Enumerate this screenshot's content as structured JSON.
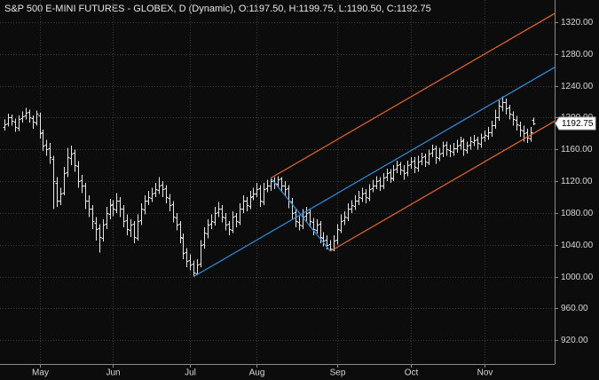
{
  "chart_data": {
    "type": "ohlc",
    "title": "S&P 500 E-MINI FUTURES - GLOBEX, D (Dynamic), O:1197.50, H:1199.75, L:1190.50, C:1192.75",
    "categories": [
      null,
      null,
      null,
      null,
      null,
      null,
      null,
      null,
      null,
      null,
      "May",
      null,
      null,
      null,
      null,
      null,
      null,
      null,
      null,
      null,
      null,
      null,
      null,
      null,
      null,
      null,
      null,
      null,
      null,
      null,
      null,
      "Jun",
      null,
      null,
      null,
      null,
      null,
      null,
      null,
      null,
      null,
      null,
      null,
      null,
      null,
      null,
      null,
      null,
      null,
      null,
      null,
      null,
      null,
      "Jul",
      null,
      null,
      null,
      null,
      null,
      null,
      null,
      null,
      null,
      null,
      null,
      null,
      null,
      null,
      null,
      null,
      null,
      null,
      "Aug",
      null,
      null,
      null,
      null,
      null,
      null,
      null,
      null,
      null,
      null,
      null,
      null,
      null,
      null,
      null,
      null,
      null,
      null,
      null,
      null,
      null,
      null,
      "Sep",
      null,
      null,
      null,
      null,
      null,
      null,
      null,
      null,
      null,
      null,
      null,
      null,
      null,
      null,
      null,
      null,
      null,
      null,
      null,
      null,
      "Oct",
      null,
      null,
      null,
      null,
      null,
      null,
      null,
      null,
      null,
      null,
      null,
      null,
      null,
      null,
      null,
      null,
      null,
      null,
      null,
      null,
      "Nov",
      null,
      null,
      null,
      null,
      null,
      null,
      null,
      null,
      null,
      null,
      null,
      null,
      null
    ],
    "values": [
      [
        1188,
        1198,
        1184,
        1192
      ],
      [
        1193,
        1205,
        1189,
        1200
      ],
      [
        1201,
        1204,
        1190,
        1196
      ],
      [
        1195,
        1199,
        1182,
        1188
      ],
      [
        1187,
        1203,
        1183,
        1198
      ],
      [
        1199,
        1208,
        1194,
        1202
      ],
      [
        1203,
        1212,
        1198,
        1206
      ],
      [
        1207,
        1210,
        1194,
        1200
      ],
      [
        1199,
        1203,
        1186,
        1195
      ],
      [
        1194,
        1209,
        1190,
        1205
      ],
      [
        1203,
        1206,
        1174,
        1180
      ],
      [
        1181,
        1185,
        1158,
        1165
      ],
      [
        1166,
        1172,
        1152,
        1160
      ],
      [
        1162,
        1168,
        1142,
        1150
      ],
      [
        1148,
        1152,
        1085,
        1120
      ],
      [
        1118,
        1125,
        1088,
        1095
      ],
      [
        1096,
        1112,
        1090,
        1105
      ],
      [
        1106,
        1138,
        1102,
        1130
      ],
      [
        1131,
        1162,
        1125,
        1150
      ],
      [
        1149,
        1165,
        1140,
        1155
      ],
      [
        1156,
        1160,
        1132,
        1140
      ],
      [
        1139,
        1145,
        1112,
        1120
      ],
      [
        1121,
        1128,
        1105,
        1115
      ],
      [
        1114,
        1118,
        1085,
        1095
      ],
      [
        1096,
        1102,
        1075,
        1085
      ],
      [
        1086,
        1090,
        1060,
        1070
      ],
      [
        1068,
        1075,
        1045,
        1060
      ],
      [
        1061,
        1066,
        1030,
        1050
      ],
      [
        1049,
        1072,
        1044,
        1065
      ],
      [
        1066,
        1088,
        1060,
        1080
      ],
      [
        1079,
        1098,
        1072,
        1090
      ],
      [
        1091,
        1096,
        1076,
        1085
      ],
      [
        1084,
        1105,
        1080,
        1095
      ],
      [
        1096,
        1100,
        1075,
        1085
      ],
      [
        1086,
        1090,
        1062,
        1070
      ],
      [
        1071,
        1078,
        1052,
        1060
      ],
      [
        1059,
        1072,
        1050,
        1065
      ],
      [
        1066,
        1070,
        1042,
        1050
      ],
      [
        1049,
        1078,
        1045,
        1070
      ],
      [
        1071,
        1092,
        1065,
        1085
      ],
      [
        1084,
        1102,
        1078,
        1095
      ],
      [
        1096,
        1108,
        1090,
        1100
      ],
      [
        1099,
        1112,
        1094,
        1105
      ],
      [
        1106,
        1118,
        1100,
        1110
      ],
      [
        1109,
        1125,
        1104,
        1115
      ],
      [
        1116,
        1120,
        1100,
        1110
      ],
      [
        1111,
        1115,
        1092,
        1100
      ],
      [
        1099,
        1104,
        1082,
        1090
      ],
      [
        1091,
        1095,
        1068,
        1075
      ],
      [
        1074,
        1080,
        1058,
        1065
      ],
      [
        1066,
        1070,
        1042,
        1050
      ],
      [
        1049,
        1054,
        1022,
        1030
      ],
      [
        1031,
        1036,
        1012,
        1020
      ],
      [
        1021,
        1028,
        1008,
        1015
      ],
      [
        1016,
        1020,
        1000,
        1005
      ],
      [
        1004,
        1022,
        1002,
        1015
      ],
      [
        1016,
        1046,
        1012,
        1040
      ],
      [
        1041,
        1062,
        1035,
        1055
      ],
      [
        1054,
        1072,
        1048,
        1065
      ],
      [
        1066,
        1078,
        1060,
        1070
      ],
      [
        1069,
        1088,
        1064,
        1080
      ],
      [
        1081,
        1094,
        1075,
        1085
      ],
      [
        1086,
        1090,
        1068,
        1075
      ],
      [
        1074,
        1080,
        1058,
        1065
      ],
      [
        1066,
        1070,
        1052,
        1060
      ],
      [
        1059,
        1082,
        1055,
        1075
      ],
      [
        1076,
        1080,
        1062,
        1070
      ],
      [
        1069,
        1092,
        1065,
        1085
      ],
      [
        1086,
        1102,
        1080,
        1095
      ],
      [
        1096,
        1100,
        1082,
        1090
      ],
      [
        1089,
        1108,
        1085,
        1100
      ],
      [
        1101,
        1112,
        1096,
        1105
      ],
      [
        1104,
        1118,
        1100,
        1110
      ],
      [
        1111,
        1115,
        1088,
        1095
      ],
      [
        1094,
        1118,
        1090,
        1110
      ],
      [
        1111,
        1122,
        1106,
        1115
      ],
      [
        1114,
        1124,
        1108,
        1120
      ],
      [
        1121,
        1125,
        1110,
        1118
      ],
      [
        1117,
        1126,
        1112,
        1122
      ],
      [
        1123,
        1125,
        1106,
        1115
      ],
      [
        1114,
        1120,
        1102,
        1110
      ],
      [
        1111,
        1115,
        1086,
        1095
      ],
      [
        1094,
        1099,
        1072,
        1080
      ],
      [
        1081,
        1086,
        1062,
        1070
      ],
      [
        1069,
        1076,
        1058,
        1065
      ],
      [
        1064,
        1085,
        1060,
        1075
      ],
      [
        1076,
        1088,
        1070,
        1080
      ],
      [
        1081,
        1085,
        1062,
        1070
      ],
      [
        1069,
        1074,
        1052,
        1060
      ],
      [
        1059,
        1072,
        1054,
        1065
      ],
      [
        1066,
        1070,
        1042,
        1050
      ],
      [
        1049,
        1056,
        1038,
        1045
      ],
      [
        1046,
        1052,
        1034,
        1040
      ],
      [
        1041,
        1046,
        1032,
        1035
      ],
      [
        1034,
        1052,
        1032,
        1045
      ],
      [
        1046,
        1066,
        1040,
        1060
      ],
      [
        1059,
        1078,
        1055,
        1070
      ],
      [
        1071,
        1082,
        1065,
        1075
      ],
      [
        1074,
        1092,
        1070,
        1085
      ],
      [
        1086,
        1096,
        1080,
        1090
      ],
      [
        1089,
        1102,
        1084,
        1095
      ],
      [
        1096,
        1108,
        1090,
        1100
      ],
      [
        1099,
        1112,
        1094,
        1105
      ],
      [
        1106,
        1110,
        1092,
        1100
      ],
      [
        1099,
        1116,
        1095,
        1110
      ],
      [
        1111,
        1122,
        1106,
        1115
      ],
      [
        1114,
        1126,
        1110,
        1120
      ],
      [
        1121,
        1125,
        1108,
        1115
      ],
      [
        1114,
        1130,
        1110,
        1125
      ],
      [
        1126,
        1136,
        1120,
        1130
      ],
      [
        1131,
        1135,
        1118,
        1125
      ],
      [
        1124,
        1140,
        1120,
        1135
      ],
      [
        1136,
        1146,
        1130,
        1140
      ],
      [
        1141,
        1144,
        1128,
        1135
      ],
      [
        1134,
        1140,
        1122,
        1130
      ],
      [
        1131,
        1146,
        1126,
        1140
      ],
      [
        1141,
        1150,
        1136,
        1145
      ],
      [
        1146,
        1150,
        1130,
        1138
      ],
      [
        1137,
        1152,
        1132,
        1145
      ],
      [
        1146,
        1156,
        1140,
        1150
      ],
      [
        1151,
        1155,
        1138,
        1145
      ],
      [
        1144,
        1160,
        1140,
        1155
      ],
      [
        1156,
        1166,
        1150,
        1160
      ],
      [
        1161,
        1165,
        1142,
        1150
      ],
      [
        1149,
        1162,
        1145,
        1155
      ],
      [
        1156,
        1170,
        1150,
        1165
      ],
      [
        1166,
        1170,
        1152,
        1160
      ],
      [
        1159,
        1166,
        1150,
        1158
      ],
      [
        1157,
        1168,
        1152,
        1162
      ],
      [
        1161,
        1172,
        1156,
        1165
      ],
      [
        1166,
        1176,
        1160,
        1170
      ],
      [
        1171,
        1174,
        1152,
        1160
      ],
      [
        1159,
        1170,
        1155,
        1165
      ],
      [
        1166,
        1176,
        1160,
        1170
      ],
      [
        1169,
        1178,
        1164,
        1172
      ],
      [
        1173,
        1176,
        1160,
        1168
      ],
      [
        1167,
        1180,
        1162,
        1175
      ],
      [
        1176,
        1184,
        1170,
        1178
      ],
      [
        1177,
        1188,
        1172,
        1182
      ],
      [
        1181,
        1196,
        1176,
        1190
      ],
      [
        1191,
        1210,
        1186,
        1200
      ],
      [
        1201,
        1222,
        1196,
        1215
      ],
      [
        1214,
        1227,
        1208,
        1220
      ],
      [
        1219,
        1224,
        1204,
        1212
      ],
      [
        1213,
        1216,
        1198,
        1205
      ],
      [
        1204,
        1208,
        1190,
        1198
      ],
      [
        1197,
        1202,
        1184,
        1192
      ],
      [
        1191,
        1195,
        1176,
        1185
      ],
      [
        1184,
        1190,
        1170,
        1180
      ],
      [
        1181,
        1186,
        1168,
        1175
      ],
      [
        1174,
        1188,
        1170,
        1182
      ],
      [
        1197.5,
        1199.75,
        1190.5,
        1192.75
      ]
    ],
    "color": "#e8e8e8",
    "ylim": [
      890,
      1348
    ],
    "yticks": [
      {
        "value": 920,
        "label": "920.00"
      },
      {
        "value": 960,
        "label": "960.00"
      },
      {
        "value": 1000,
        "label": "1000.00"
      },
      {
        "value": 1040,
        "label": "1040.00"
      },
      {
        "value": 1080,
        "label": "1080.00"
      },
      {
        "value": 1120,
        "label": "1120.00"
      },
      {
        "value": 1160,
        "label": "1160.00"
      },
      {
        "value": 1200,
        "label": "1200.00"
      },
      {
        "value": 1240,
        "label": "1240.00"
      },
      {
        "value": 1280,
        "label": "1280.00"
      },
      {
        "value": 1320,
        "label": "1320.00"
      }
    ],
    "grid": true,
    "pitchfork": {
      "x": [
        54,
        76,
        93
      ],
      "y": [
        1000,
        1124,
        1032
      ],
      "median_color": "#2f8fe0",
      "outer_color": "#e8672a"
    }
  }
}
